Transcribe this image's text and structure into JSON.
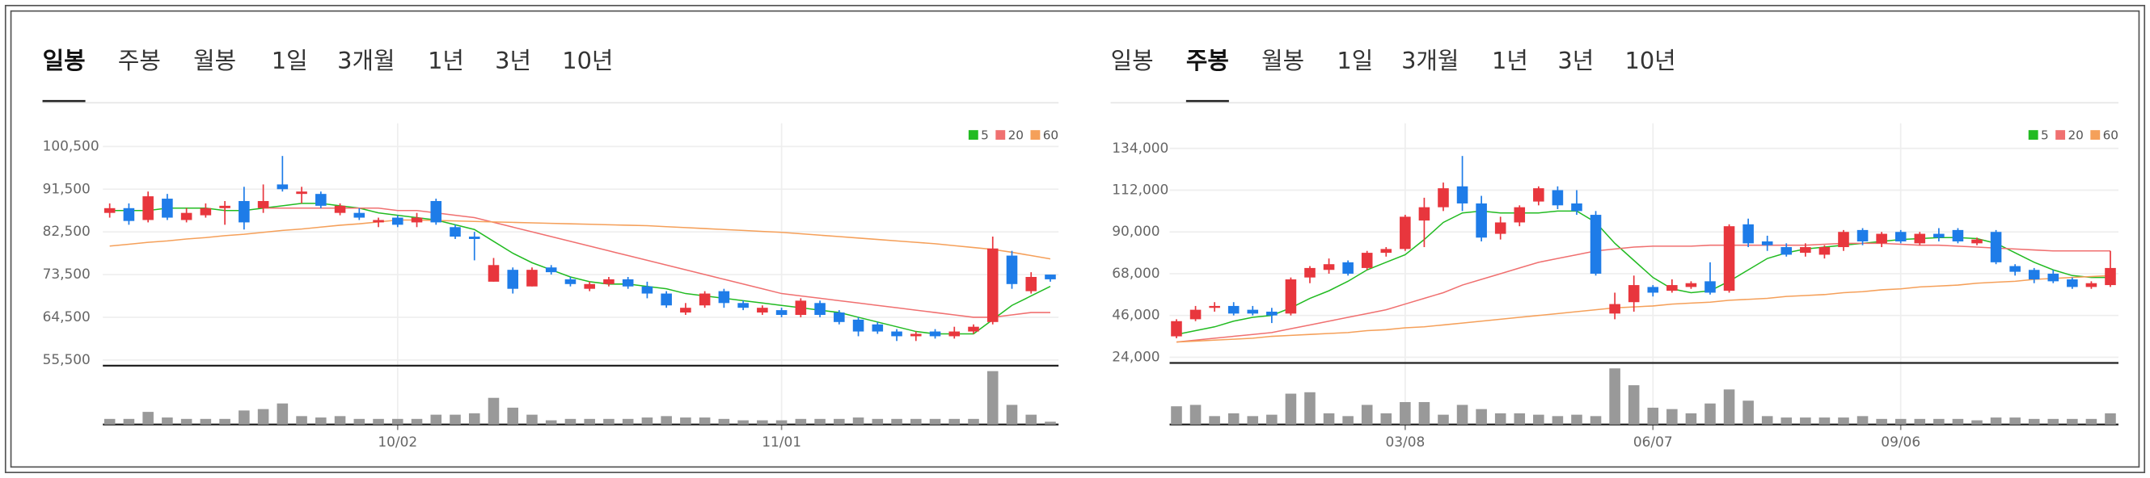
{
  "tabs": [
    [
      "일봉",
      "주봉",
      "월봉",
      "1일",
      "3개월",
      "1년",
      "3년",
      "10년"
    ],
    [
      "일봉",
      "주봉",
      "월봉",
      "1일",
      "3개월",
      "1년",
      "3년",
      "10년"
    ]
  ],
  "chart_data": [
    {
      "type": "candlestick",
      "up_color": "#e8363d",
      "down_color": "#1e7ce8",
      "volume_color": "#999999",
      "categories": [
        null,
        null,
        null,
        null,
        null,
        null,
        null,
        null,
        null,
        null,
        null,
        null,
        null,
        null,
        null,
        "10/02",
        null,
        null,
        null,
        null,
        null,
        null,
        null,
        null,
        null,
        null,
        null,
        null,
        null,
        null,
        null,
        null,
        null,
        null,
        null,
        "11/01",
        null,
        null,
        null,
        null,
        null,
        null,
        null,
        null,
        null,
        null,
        null,
        null,
        null,
        null
      ],
      "open": [
        86500,
        87500,
        85000,
        89500,
        85000,
        86000,
        87500,
        89000,
        87500,
        92500,
        90500,
        90500,
        86500,
        86500,
        84500,
        85500,
        84500,
        89000,
        83500,
        81500,
        72000,
        74500,
        71000,
        75000,
        72500,
        70500,
        71500,
        72500,
        71000,
        69500,
        65500,
        67000,
        70000,
        67500,
        65500,
        66000,
        65000,
        67500,
        65500,
        64000,
        63000,
        61500,
        60500,
        61500,
        60500,
        61500,
        63500,
        77500,
        70000,
        73500
      ],
      "high": [
        88500,
        88500,
        91000,
        90500,
        87500,
        88500,
        89000,
        92000,
        92500,
        98500,
        92000,
        91000,
        88500,
        87500,
        85500,
        86000,
        86500,
        89500,
        84000,
        82500,
        77000,
        75000,
        75000,
        75500,
        73000,
        72000,
        73000,
        73000,
        72000,
        70000,
        67500,
        70000,
        70500,
        68000,
        67000,
        66500,
        68500,
        68000,
        66000,
        64500,
        63500,
        62000,
        61500,
        62000,
        62500,
        63000,
        81500,
        78500,
        74000,
        73500
      ],
      "low": [
        85500,
        84000,
        84500,
        85000,
        84500,
        85500,
        84000,
        83000,
        86500,
        91000,
        88500,
        87500,
        86000,
        85000,
        83500,
        83500,
        83500,
        84000,
        81000,
        76500,
        72000,
        69500,
        71000,
        73500,
        71000,
        70000,
        71000,
        70500,
        68500,
        66500,
        65000,
        66500,
        66500,
        66000,
        65000,
        64500,
        64500,
        64500,
        63000,
        60500,
        61000,
        59500,
        59500,
        60000,
        60000,
        61000,
        63000,
        70500,
        69500,
        72000
      ],
      "close": [
        87500,
        84800,
        90000,
        85500,
        86500,
        87500,
        88000,
        84500,
        89000,
        91500,
        91000,
        88000,
        88000,
        85500,
        85000,
        84000,
        85500,
        84500,
        81500,
        81000,
        75500,
        70500,
        74500,
        74000,
        71500,
        71500,
        72500,
        71000,
        69500,
        67000,
        66500,
        69500,
        67500,
        66500,
        66500,
        65000,
        68000,
        65000,
        63500,
        61500,
        61500,
        60500,
        61000,
        60500,
        61500,
        62500,
        79000,
        71500,
        73000,
        72500
      ],
      "series": [
        {
          "name": "5",
          "color": "#22bb22",
          "values": [
            87000,
            87000,
            87000,
            87500,
            87500,
            87500,
            87000,
            87000,
            87500,
            88000,
            88500,
            88500,
            88000,
            87500,
            86500,
            86000,
            85500,
            85000,
            84000,
            83000,
            80500,
            78000,
            76000,
            74500,
            73000,
            72000,
            71500,
            71500,
            71000,
            70500,
            69500,
            69000,
            68500,
            68000,
            67500,
            67000,
            66500,
            66000,
            65500,
            64500,
            63500,
            62500,
            61500,
            61000,
            61000,
            61000,
            64000,
            67000,
            69000,
            71000
          ]
        },
        {
          "name": "20",
          "color": "#f07070",
          "values": [
            null,
            null,
            null,
            null,
            null,
            null,
            null,
            null,
            87500,
            87500,
            87500,
            87500,
            87500,
            87500,
            87500,
            87000,
            87000,
            86500,
            86000,
            85500,
            84500,
            83500,
            82500,
            81500,
            80500,
            79500,
            78500,
            77500,
            76500,
            75500,
            74500,
            73500,
            72500,
            71500,
            70500,
            69500,
            69000,
            68500,
            68000,
            67500,
            67000,
            66500,
            66000,
            65500,
            65000,
            64500,
            64500,
            65000,
            65500,
            65500
          ]
        },
        {
          "name": "60",
          "color": "#f5a05a",
          "values": [
            79500,
            79900,
            80300,
            80600,
            81000,
            81300,
            81700,
            82000,
            82400,
            82800,
            83100,
            83500,
            83900,
            84200,
            84600,
            85000,
            85000,
            84900,
            84800,
            84700,
            84600,
            84500,
            84400,
            84300,
            84200,
            84100,
            84000,
            83900,
            83800,
            83600,
            83400,
            83200,
            83000,
            82800,
            82600,
            82400,
            82100,
            81800,
            81500,
            81200,
            80900,
            80600,
            80300,
            80000,
            79600,
            79200,
            78800,
            78200,
            77500,
            76800
          ]
        }
      ],
      "volume": [
        4,
        4,
        9,
        5,
        4,
        4,
        4,
        10,
        11,
        15,
        6,
        5,
        6,
        4,
        4,
        4,
        4,
        7,
        7,
        8,
        19,
        12,
        7,
        3,
        4,
        4,
        4,
        4,
        5,
        6,
        5,
        5,
        4,
        3,
        3,
        3,
        4,
        4,
        4,
        5,
        4,
        4,
        4,
        4,
        4,
        4,
        38,
        14,
        7,
        2
      ],
      "ylim": [
        54300,
        102500
      ],
      "yticks": [
        {
          "value": 55500,
          "label": "55,500"
        },
        {
          "value": 64500,
          "label": "64,500"
        },
        {
          "value": 73500,
          "label": "73,500"
        },
        {
          "value": 82500,
          "label": "82,500"
        },
        {
          "value": 91500,
          "label": "91,500"
        },
        {
          "value": 100500,
          "label": "100,500"
        }
      ],
      "grid": true
    },
    {
      "type": "candlestick",
      "up_color": "#e8363d",
      "down_color": "#1e7ce8",
      "volume_color": "#999999",
      "categories": [
        null,
        null,
        null,
        null,
        null,
        null,
        null,
        null,
        null,
        null,
        null,
        null,
        "03/08",
        null,
        null,
        null,
        null,
        null,
        null,
        null,
        null,
        null,
        null,
        null,
        null,
        "06/07",
        null,
        null,
        null,
        null,
        null,
        null,
        null,
        null,
        null,
        null,
        null,
        null,
        "09/06",
        null,
        null,
        null,
        null,
        null,
        null,
        null,
        null,
        null,
        null,
        null
      ],
      "open": [
        35000,
        44000,
        50000,
        51000,
        49000,
        48000,
        47000,
        66000,
        70000,
        74000,
        71000,
        79000,
        81000,
        96000,
        103000,
        114000,
        105000,
        89000,
        95000,
        106000,
        112000,
        105000,
        99000,
        47000,
        53000,
        61000,
        59000,
        61000,
        64000,
        59000,
        94000,
        85000,
        82000,
        79000,
        78000,
        82000,
        91000,
        84000,
        90000,
        84000,
        89000,
        91000,
        84000,
        90000,
        72000,
        70000,
        68000,
        65000,
        61000,
        62000
      ],
      "high": [
        44000,
        51000,
        53000,
        53000,
        51000,
        50000,
        66000,
        72000,
        76000,
        75000,
        80000,
        82000,
        99000,
        108000,
        116000,
        130000,
        109000,
        98000,
        104000,
        114000,
        114000,
        112000,
        101000,
        58000,
        67000,
        62000,
        65000,
        64000,
        74000,
        94000,
        97000,
        88000,
        84000,
        84000,
        83000,
        91000,
        92000,
        90000,
        91000,
        90000,
        92000,
        92000,
        87000,
        91000,
        73000,
        71000,
        70000,
        66000,
        64000,
        80000
      ],
      "low": [
        34000,
        43000,
        48000,
        46000,
        46000,
        42000,
        46000,
        63000,
        68000,
        67000,
        70000,
        77000,
        80000,
        82000,
        101000,
        101000,
        85000,
        86000,
        93000,
        104000,
        102000,
        99000,
        67000,
        44000,
        48000,
        56000,
        58000,
        60000,
        57000,
        58000,
        82000,
        80000,
        77000,
        77000,
        76000,
        80000,
        83000,
        82000,
        84000,
        83000,
        85000,
        84000,
        83000,
        73000,
        67000,
        63000,
        63000,
        60000,
        60000,
        61000
      ],
      "close": [
        43000,
        49000,
        51000,
        47000,
        47000,
        46000,
        65000,
        71000,
        73000,
        68000,
        79000,
        81000,
        98000,
        103000,
        113000,
        105000,
        87000,
        95000,
        103000,
        113000,
        104000,
        101000,
        68000,
        52000,
        62000,
        58000,
        62000,
        63000,
        58000,
        93000,
        84000,
        83000,
        78000,
        82000,
        82000,
        90000,
        85000,
        89000,
        85000,
        89000,
        87000,
        85000,
        86000,
        74000,
        69000,
        65000,
        64000,
        61000,
        63000,
        71000
      ],
      "series": [
        {
          "name": "5",
          "color": "#22bb22",
          "values": [
            36000,
            38000,
            40000,
            43000,
            45000,
            46000,
            50000,
            55000,
            59000,
            64000,
            70000,
            74000,
            78000,
            86000,
            95000,
            100000,
            101000,
            100000,
            100000,
            100000,
            101000,
            101000,
            95000,
            84000,
            75000,
            66000,
            60000,
            58000,
            59000,
            64000,
            70000,
            76000,
            79000,
            81000,
            82000,
            83000,
            84000,
            85000,
            86000,
            86500,
            87000,
            87000,
            86500,
            84000,
            79000,
            74000,
            70000,
            67000,
            66000,
            66000
          ]
        },
        {
          "name": "20",
          "color": "#f07070",
          "values": [
            32000,
            33000,
            34000,
            35000,
            36000,
            37000,
            39000,
            41000,
            43000,
            45000,
            47000,
            49000,
            52000,
            55000,
            58000,
            62000,
            65000,
            68000,
            71000,
            74000,
            76000,
            78000,
            80000,
            81000,
            82000,
            82500,
            82500,
            82500,
            83000,
            83000,
            83000,
            83000,
            83000,
            83000,
            83500,
            84000,
            84000,
            84000,
            83500,
            83000,
            83000,
            82500,
            82000,
            81500,
            81000,
            80500,
            80000,
            80000,
            80000,
            80000
          ]
        },
        {
          "name": "60",
          "color": "#f5a05a",
          "values": [
            32000,
            32500,
            33000,
            33500,
            34000,
            35000,
            35500,
            36000,
            36500,
            37000,
            38000,
            38500,
            39500,
            40000,
            41000,
            42000,
            43000,
            44000,
            45000,
            46000,
            47000,
            48000,
            49000,
            50000,
            50500,
            51000,
            52000,
            52500,
            53000,
            54000,
            54500,
            55000,
            56000,
            56500,
            57000,
            58000,
            58500,
            59500,
            60000,
            61000,
            61500,
            62000,
            63000,
            63500,
            64000,
            65000,
            65500,
            66000,
            66500,
            67000
          ]
        }
      ],
      "volume": [
        13,
        14,
        6,
        8,
        6,
        7,
        22,
        23,
        8,
        6,
        14,
        8,
        16,
        16,
        7,
        14,
        11,
        8,
        8,
        7,
        6,
        7,
        6,
        40,
        28,
        12,
        11,
        8,
        15,
        25,
        17,
        6,
        5,
        5,
        5,
        5,
        6,
        4,
        4,
        4,
        4,
        4,
        3,
        5,
        5,
        4,
        4,
        4,
        4,
        8
      ],
      "ylim": [
        21000,
        140000
      ],
      "yticks": [
        {
          "value": 24000,
          "label": "24,000"
        },
        {
          "value": 46000,
          "label": "46,000"
        },
        {
          "value": 68000,
          "label": "68,000"
        },
        {
          "value": 90000,
          "label": "90,000"
        },
        {
          "value": 112000,
          "label": "112,000"
        },
        {
          "value": 134000,
          "label": "134,000"
        }
      ],
      "grid": true
    }
  ]
}
